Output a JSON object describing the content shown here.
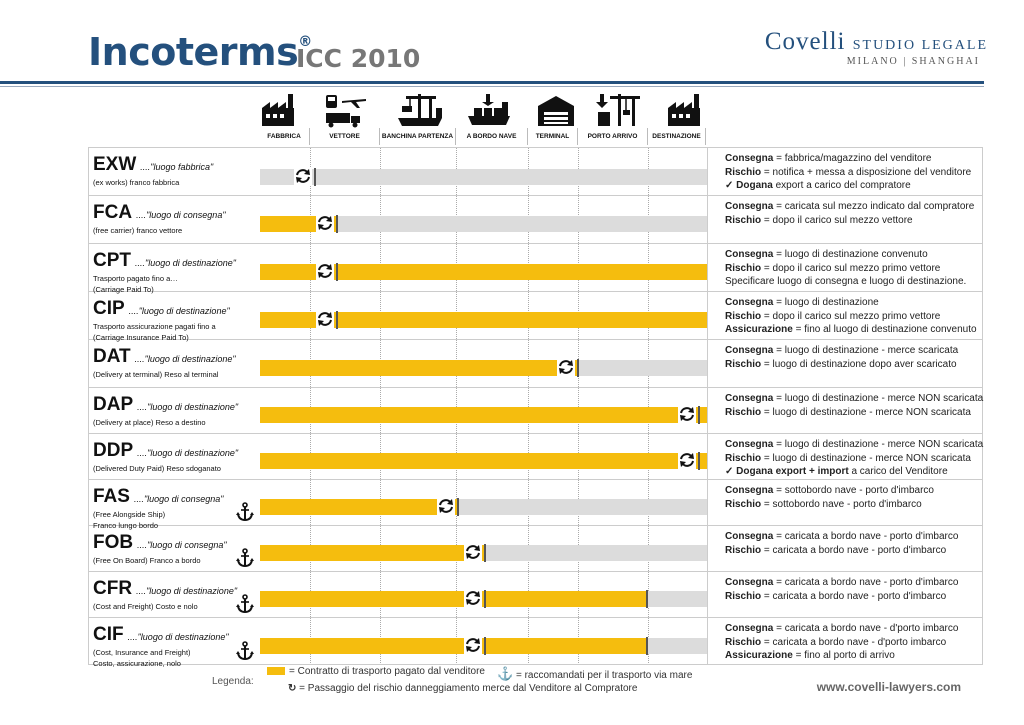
{
  "header": {
    "title": "Incoterms",
    "registered": "®",
    "subtitle": "ICC 2010",
    "firm": "Covelli",
    "firm_suffix": "STUDIO LEGALE",
    "firm_cities": "MILANO | SHANGHAI"
  },
  "stages": [
    "FABBRICA",
    "VETTORE",
    "BANCHINA PARTENZA",
    "A BORDO NAVE",
    "TERMINAL",
    "PORTO ARRIVO",
    "DESTINAZIONE"
  ],
  "icons": [
    "factory-icon",
    "truck-train-plane-icon",
    "port-crane-ship-icon",
    "cargo-ship-icon",
    "warehouse-icon",
    "port-crane-icon",
    "factory-destination-icon"
  ],
  "terms": [
    {
      "code": "EXW",
      "place": "....\"luogo fabbrica\"",
      "desc": [
        "(ex works) franco fabbrica"
      ],
      "fill": 0,
      "risk": 0.12,
      "anchor": false,
      "info": [
        [
          "Consegna",
          " = fabbrica/magazzino del venditore"
        ],
        [
          "Rischio",
          " = notifica + messa a disposizione del venditore"
        ],
        [
          "Dogana",
          " export a carico del compratore"
        ]
      ],
      "customs_icon_line": 2
    },
    {
      "code": "FCA",
      "place": "....\"luogo di consegna\"",
      "desc": [
        "(free carrier) franco vettore"
      ],
      "fill": 0.17,
      "risk": 0.17,
      "anchor": false,
      "info": [
        [
          "Consegna",
          " = caricata sul mezzo indicato dal compratore"
        ],
        [
          "Rischio",
          " = dopo il carico sul mezzo vettore"
        ]
      ]
    },
    {
      "code": "CPT",
      "place": "....\"luogo di destinazione\"",
      "desc": [
        "Trasporto pagato fino a…",
        "(Carriage Paid To)"
      ],
      "fill": 1.0,
      "risk": 0.17,
      "anchor": false,
      "info": [
        [
          "Consegna",
          " = luogo di destinazione convenuto"
        ],
        [
          "Rischio",
          " = dopo il carico sul mezzo primo vettore"
        ],
        [
          "",
          "Specificare luogo di consegna e luogo di destinazione."
        ]
      ]
    },
    {
      "code": "CIP",
      "place": "....\"luogo di destinazione\"",
      "desc": [
        "Trasporto assicurazione pagati fino a",
        "(Carriage Insurance Paid To)"
      ],
      "fill": 1.0,
      "risk": 0.17,
      "anchor": false,
      "info": [
        [
          "Consegna",
          " = luogo di destinazione"
        ],
        [
          "Rischio",
          " = dopo il carico sul mezzo primo vettore"
        ],
        [
          "Assicurazione",
          " = fino al luogo di destinazione convenuto"
        ]
      ]
    },
    {
      "code": "DAT",
      "place": "....\"luogo di destinazione\"",
      "desc": [
        "(Delivery at terminal) Reso al terminal"
      ],
      "fill": 0.71,
      "risk": 0.71,
      "anchor": false,
      "info": [
        [
          "Consegna",
          " = luogo di destinazione - merce scaricata"
        ],
        [
          "Rischio",
          "    = luogo di destinazione dopo aver scaricato"
        ]
      ]
    },
    {
      "code": "DAP",
      "place": "....\"luogo di destinazione\"",
      "desc": [
        "(Delivery at place) Reso a destino"
      ],
      "fill": 1.0,
      "risk": 0.98,
      "anchor": false,
      "info": [
        [
          "Consegna",
          " = luogo di destinazione - merce NON scaricata"
        ],
        [
          "Rischio",
          " = luogo di destinazione - merce NON scaricata"
        ]
      ]
    },
    {
      "code": "DDP",
      "place": "....\"luogo di destinazione\"",
      "desc": [
        "(Delivered Duty Paid) Reso sdoganato"
      ],
      "fill": 1.0,
      "risk": 0.98,
      "anchor": false,
      "info": [
        [
          "Consegna",
          " = luogo di destinazione - merce NON scaricata"
        ],
        [
          "Rischio",
          " = luogo di destinazione - merce NON scaricata"
        ],
        [
          "Dogana export + import",
          " a carico del Venditore"
        ]
      ],
      "customs_icon_line": 2
    },
    {
      "code": "FAS",
      "place": "....\"luogo di consegna\"",
      "desc": [
        "(Free Alongside Ship)",
        "Franco lungo bordo"
      ],
      "fill": 0.44,
      "risk": 0.44,
      "anchor": true,
      "info": [
        [
          "Consegna",
          " = sottobordo nave - porto d'imbarco"
        ],
        [
          "Rischio",
          "    = sottobordo nave - porto d'imbarco"
        ]
      ]
    },
    {
      "code": "FOB",
      "place": "....\"luogo di consegna\"",
      "desc": [
        "(Free On Board) Franco a bordo"
      ],
      "fill": 0.5,
      "risk": 0.5,
      "anchor": true,
      "info": [
        [
          "Consegna",
          " = caricata a bordo nave - porto d'imbarco"
        ],
        [
          "Rischio",
          "    = caricata a bordo nave - porto d'imbarco"
        ]
      ]
    },
    {
      "code": "CFR",
      "place": "....\"luogo di destinazione\"",
      "desc": [
        "(Cost and Freight) Costo e nolo"
      ],
      "fill": 0.865,
      "risk": 0.5,
      "anchor": true,
      "info": [
        [
          "Consegna",
          " = caricata a bordo nave - porto d'imbarco"
        ],
        [
          "Rischio",
          "    = caricata a bordo nave - porto d'imbarco"
        ]
      ]
    },
    {
      "code": "CIF",
      "place": "....\"luogo di destinazione\"",
      "desc": [
        "(Cost, Insurance and Freight)",
        "Costo, assicurazione, nolo"
      ],
      "fill": 0.865,
      "risk": 0.5,
      "anchor": true,
      "info": [
        [
          "Consegna",
          " = caricata a bordo nave - d'porto imbarco"
        ],
        [
          "Rischio",
          "    = caricata a bordo nave - d'porto imbarco"
        ],
        [
          "Assicurazione",
          " = fino al porto di arrivo"
        ]
      ]
    }
  ],
  "legend": {
    "label": "Legenda:",
    "fill_text": "= Contratto di trasporto pagato dal venditore",
    "anchor_text": "= raccomandati per il trasporto via mare",
    "risk_text": "=  Passaggio del rischio danneggiamento merce dal Venditore al Compratore"
  },
  "footer_url": "www.covelli-lawyers.com",
  "colors": {
    "accent": "#24507d",
    "fill": "#f5bd0e",
    "track": "#dcdcdc"
  }
}
